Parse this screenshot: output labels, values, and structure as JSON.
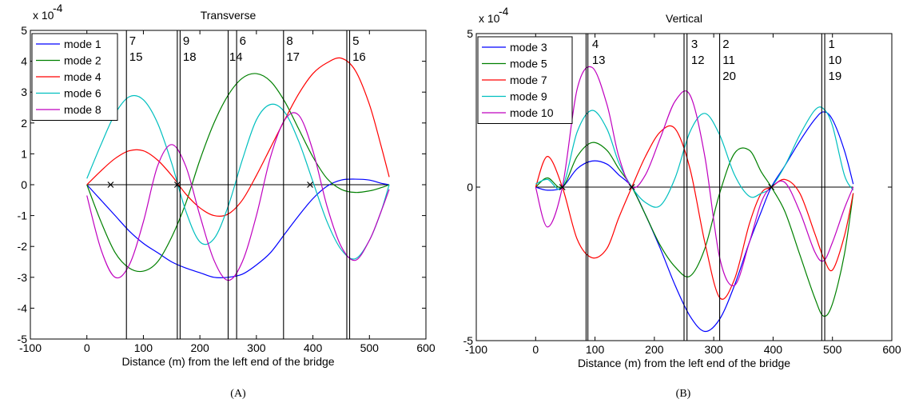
{
  "figure": {
    "xlabel": "Distance (m) from the left end of the bridge",
    "captions": [
      "(A)",
      "(B)"
    ]
  },
  "chart_data": [
    {
      "type": "line",
      "title": "Transverse",
      "xlabel": "Distance (m) from the left end of the bridge",
      "ylabel": "",
      "xlim": [
        -100,
        600
      ],
      "ylim": [
        -5,
        5
      ],
      "x_ticks": [
        -100,
        0,
        100,
        200,
        300,
        400,
        500,
        600
      ],
      "y_ticks": [
        -5,
        -4,
        -3,
        -2,
        -1,
        0,
        1,
        2,
        3,
        4,
        5
      ],
      "y_multiplier": "x 10",
      "y_multiplier_exp": "-4",
      "grid": false,
      "legend_position": "top-left",
      "zero_line": {
        "from": 0,
        "to": 535
      },
      "markers": [
        {
          "x": 42,
          "y": 0
        },
        {
          "x": 160,
          "y": 0
        },
        {
          "x": 395,
          "y": 0
        }
      ],
      "sensor_lines": [
        {
          "xs": [
            70
          ],
          "labels": [
            "7",
            "15"
          ],
          "label_x": 75
        },
        {
          "xs": [
            160,
            165
          ],
          "labels": [
            "9",
            "18"
          ],
          "label_x": 170
        },
        {
          "xs": [
            250
          ],
          "labels": [
            "14"
          ],
          "label_x": 252,
          "label_row": 1
        },
        {
          "xs": [
            265
          ],
          "labels": [
            "6"
          ],
          "label_x": 270
        },
        {
          "xs": [
            348
          ],
          "labels": [
            "8",
            "17"
          ],
          "label_x": 353
        },
        {
          "xs": [
            460,
            465
          ],
          "labels": [
            "5",
            "16"
          ],
          "label_x": 470
        }
      ],
      "series": [
        {
          "name": "mode 1",
          "color": "#0000ff",
          "x": [
            0,
            25,
            50,
            75,
            100,
            125,
            150,
            175,
            200,
            225,
            250,
            275,
            300,
            325,
            350,
            375,
            400,
            425,
            450,
            475,
            500,
            520,
            535
          ],
          "y": [
            0,
            -0.5,
            -1.0,
            -1.5,
            -1.9,
            -2.2,
            -2.5,
            -2.7,
            -2.85,
            -3.0,
            -3.0,
            -2.9,
            -2.6,
            -2.2,
            -1.6,
            -1.0,
            -0.45,
            -0.05,
            0.15,
            0.18,
            0.15,
            0.05,
            0
          ]
        },
        {
          "name": "mode 2",
          "color": "#008000",
          "x": [
            0,
            25,
            50,
            75,
            100,
            125,
            150,
            175,
            200,
            225,
            250,
            275,
            300,
            325,
            350,
            375,
            400,
            425,
            450,
            475,
            500,
            520,
            535
          ],
          "y": [
            0,
            -1.2,
            -2.2,
            -2.7,
            -2.8,
            -2.5,
            -1.7,
            -0.6,
            0.8,
            2.0,
            2.9,
            3.45,
            3.6,
            3.35,
            2.7,
            1.8,
            0.9,
            0.2,
            -0.15,
            -0.25,
            -0.2,
            -0.1,
            0
          ]
        },
        {
          "name": "mode 4",
          "color": "#ff0000",
          "x": [
            0,
            25,
            50,
            75,
            100,
            125,
            150,
            175,
            200,
            225,
            250,
            275,
            300,
            325,
            350,
            375,
            400,
            425,
            450,
            475,
            500,
            520,
            535
          ],
          "y": [
            0,
            0.45,
            0.85,
            1.1,
            1.1,
            0.8,
            0.3,
            -0.3,
            -0.75,
            -1.0,
            -0.95,
            -0.5,
            0.3,
            1.2,
            2.1,
            2.95,
            3.6,
            3.95,
            4.1,
            3.7,
            2.6,
            1.3,
            0.25
          ]
        },
        {
          "name": "mode 6",
          "color": "#00bfbf",
          "x": [
            0,
            25,
            50,
            75,
            100,
            125,
            150,
            175,
            200,
            225,
            250,
            275,
            300,
            325,
            350,
            375,
            400,
            425,
            450,
            475,
            500,
            520,
            535
          ],
          "y": [
            0.2,
            1.3,
            2.3,
            2.85,
            2.75,
            2.0,
            0.7,
            -0.85,
            -1.85,
            -1.75,
            -0.7,
            0.8,
            2.1,
            2.6,
            2.35,
            1.4,
            0.1,
            -1.2,
            -2.1,
            -2.4,
            -1.8,
            -0.9,
            0
          ]
        },
        {
          "name": "mode 8",
          "color": "#bf00bf",
          "x": [
            0,
            25,
            50,
            75,
            100,
            125,
            150,
            175,
            200,
            225,
            250,
            275,
            300,
            325,
            350,
            375,
            400,
            425,
            450,
            475,
            500,
            520,
            535
          ],
          "y": [
            -0.35,
            -2.1,
            -3.0,
            -2.6,
            -1.2,
            0.6,
            1.3,
            0.6,
            -1.0,
            -2.45,
            -3.1,
            -2.5,
            -1.0,
            0.9,
            2.1,
            2.25,
            1.1,
            -0.7,
            -2.0,
            -2.45,
            -1.8,
            -0.9,
            -0.15
          ]
        }
      ]
    },
    {
      "type": "line",
      "title": "Vertical",
      "xlabel": "Distance (m) from the left end of the bridge",
      "ylabel": "",
      "xlim": [
        -100,
        600
      ],
      "ylim": [
        -5,
        5
      ],
      "x_ticks": [
        -100,
        0,
        100,
        200,
        300,
        400,
        500,
        600
      ],
      "y_ticks": [
        -5,
        0,
        5
      ],
      "y_multiplier": "x 10",
      "y_multiplier_exp": "-4",
      "grid": false,
      "legend_position": "top-left",
      "zero_line": {
        "from": 0,
        "to": 535
      },
      "markers": [
        {
          "x": 45,
          "y": 0
        },
        {
          "x": 162,
          "y": 0
        },
        {
          "x": 397,
          "y": 0
        }
      ],
      "sensor_lines": [
        {
          "xs": [
            85,
            88
          ],
          "labels": [
            "4",
            "13"
          ],
          "label_x": 95
        },
        {
          "xs": [
            250,
            255
          ],
          "labels": [
            "3",
            "12"
          ],
          "label_x": 262
        },
        {
          "xs": [
            310
          ],
          "labels": [
            "2",
            "11",
            "20"
          ],
          "label_x": 315
        },
        {
          "xs": [
            482,
            487
          ],
          "labels": [
            "1",
            "10",
            "19"
          ],
          "label_x": 493
        }
      ],
      "series": [
        {
          "name": "mode 3",
          "color": "#0000ff",
          "x": [
            0,
            20,
            45,
            70,
            95,
            120,
            140,
            162,
            185,
            210,
            235,
            260,
            285,
            310,
            335,
            360,
            380,
            397,
            420,
            445,
            470,
            485,
            500,
            520,
            535
          ],
          "y": [
            0,
            -0.1,
            0,
            0.6,
            0.85,
            0.75,
            0.4,
            0,
            -0.9,
            -2.0,
            -3.2,
            -4.2,
            -4.7,
            -4.3,
            -3.2,
            -1.8,
            -0.8,
            0,
            0.7,
            1.5,
            2.2,
            2.45,
            2.2,
            1.2,
            0.1
          ]
        },
        {
          "name": "mode 5",
          "color": "#008000",
          "x": [
            0,
            20,
            45,
            70,
            95,
            120,
            140,
            162,
            185,
            210,
            235,
            260,
            285,
            310,
            335,
            360,
            380,
            397,
            420,
            445,
            470,
            485,
            500,
            520,
            535
          ],
          "y": [
            0,
            0.3,
            0,
            1.0,
            1.45,
            1.2,
            0.6,
            0,
            -0.9,
            -1.9,
            -2.6,
            -2.9,
            -2.0,
            -0.2,
            1.1,
            1.2,
            0.5,
            0,
            -0.8,
            -2.2,
            -3.6,
            -4.2,
            -3.8,
            -2.2,
            -0.2
          ]
        },
        {
          "name": "mode 7",
          "color": "#ff0000",
          "x": [
            0,
            20,
            45,
            70,
            95,
            120,
            140,
            162,
            185,
            210,
            235,
            260,
            285,
            310,
            335,
            360,
            380,
            397,
            420,
            445,
            470,
            485,
            500,
            520,
            535
          ],
          "y": [
            0,
            1.0,
            0,
            -1.7,
            -2.3,
            -2.0,
            -1.0,
            0,
            1.0,
            1.8,
            1.9,
            0.6,
            -1.8,
            -3.6,
            -3.0,
            -1.2,
            -0.2,
            0,
            0.25,
            -0.2,
            -1.5,
            -2.3,
            -2.7,
            -1.6,
            -0.2
          ]
        },
        {
          "name": "mode 9",
          "color": "#00bfbf",
          "x": [
            0,
            20,
            45,
            70,
            95,
            120,
            140,
            162,
            185,
            210,
            235,
            260,
            285,
            310,
            335,
            360,
            380,
            397,
            420,
            445,
            470,
            485,
            500,
            520,
            535
          ],
          "y": [
            0.1,
            0.25,
            0,
            1.8,
            2.5,
            1.9,
            0.8,
            0,
            -0.5,
            -0.6,
            0.3,
            1.8,
            2.4,
            1.7,
            0.4,
            -0.3,
            -0.2,
            0,
            0.7,
            1.7,
            2.5,
            2.55,
            2.0,
            0.4,
            -0.1
          ]
        },
        {
          "name": "mode 10",
          "color": "#bf00bf",
          "x": [
            0,
            20,
            45,
            70,
            95,
            120,
            140,
            162,
            185,
            210,
            235,
            260,
            285,
            310,
            335,
            360,
            380,
            397,
            420,
            445,
            470,
            485,
            500,
            520,
            535
          ],
          "y": [
            0,
            -1.3,
            0,
            3.2,
            3.9,
            2.7,
            1.0,
            0,
            0.4,
            1.6,
            2.8,
            3.0,
            1.0,
            -2.3,
            -3.2,
            -1.8,
            -0.5,
            0,
            0.15,
            -0.8,
            -2.1,
            -2.4,
            -1.8,
            -0.7,
            0
          ]
        }
      ]
    }
  ]
}
